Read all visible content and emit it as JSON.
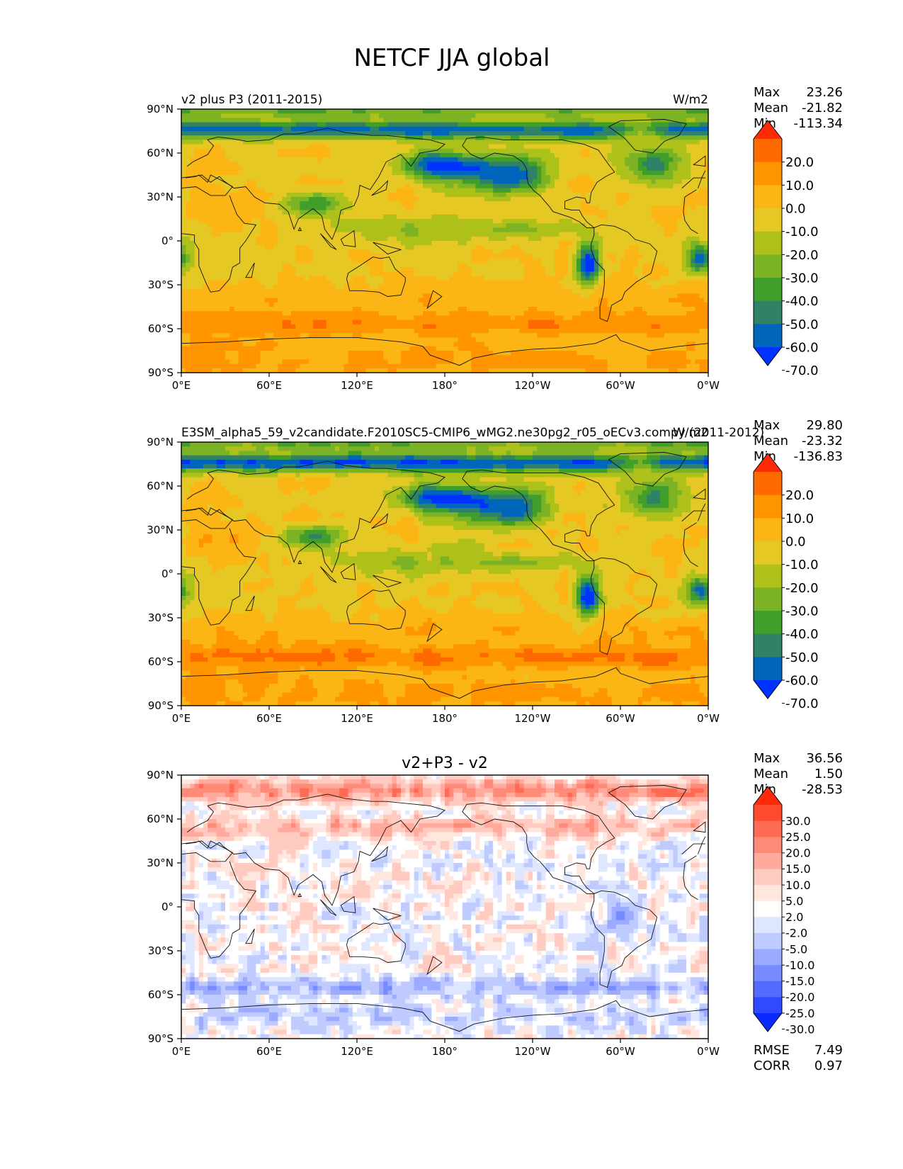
{
  "figure": {
    "title": "NETCF JJA global"
  },
  "chart_data": [
    {
      "type": "heatmap",
      "kind": "map",
      "title": "",
      "left_label": "v2 plus P3 (2011-2015)",
      "units": "W/m2",
      "stats": [
        {
          "label": "Max",
          "value": "23.26"
        },
        {
          "label": "Mean",
          "value": "-21.82"
        },
        {
          "label": "Min",
          "value": "-113.34"
        }
      ],
      "colorbar": {
        "labels": [
          "20.0",
          "10.0",
          "0.0",
          "-10.0",
          "-20.0",
          "-30.0",
          "-40.0",
          "-50.0",
          "-60.0",
          "-70.0"
        ],
        "colors": [
          "#ff2a0a",
          "#ff6a00",
          "#ff9500",
          "#fbb515",
          "#e6c824",
          "#adc11a",
          "#7cb324",
          "#409e2a",
          "#2f8268",
          "#0066bb",
          "#0033ff"
        ],
        "extend": "both"
      },
      "xticks": [
        "0°E",
        "60°E",
        "120°E",
        "180°",
        "120°W",
        "60°W",
        "0°W"
      ],
      "yticks": [
        "90°N",
        "60°N",
        "30°N",
        "0°",
        "30°S",
        "60°S",
        "90°S"
      ],
      "field": "model",
      "xlim": [
        0,
        360
      ],
      "ylim": [
        -90,
        90
      ]
    },
    {
      "type": "heatmap",
      "kind": "map",
      "title": "",
      "left_label": "E3SM_alpha5_59_v2candidate.F2010SC5-CMIP6_wMG2.ne30pg2_r05_oECv3.compy (2011-2012)",
      "units": "W/m2",
      "stats": [
        {
          "label": "Max",
          "value": "29.80"
        },
        {
          "label": "Mean",
          "value": "-23.32"
        },
        {
          "label": "Min",
          "value": "-136.83"
        }
      ],
      "colorbar": {
        "labels": [
          "20.0",
          "10.0",
          "0.0",
          "-10.0",
          "-20.0",
          "-30.0",
          "-40.0",
          "-50.0",
          "-60.0",
          "-70.0"
        ],
        "colors": [
          "#ff2a0a",
          "#ff6a00",
          "#ff9500",
          "#fbb515",
          "#e6c824",
          "#adc11a",
          "#7cb324",
          "#409e2a",
          "#2f8268",
          "#0066bb",
          "#0033ff"
        ],
        "extend": "both"
      },
      "xticks": [
        "0°E",
        "60°E",
        "120°E",
        "180°",
        "120°W",
        "60°W",
        "0°W"
      ],
      "yticks": [
        "90°N",
        "60°N",
        "30°N",
        "0°",
        "30°S",
        "60°S",
        "90°S"
      ],
      "field": "ref",
      "xlim": [
        0,
        360
      ],
      "ylim": [
        -90,
        90
      ]
    },
    {
      "type": "heatmap",
      "kind": "map",
      "title": "v2+P3 - v2",
      "left_label": "",
      "units": "",
      "stats": [
        {
          "label": "Max",
          "value": "36.56"
        },
        {
          "label": "Mean",
          "value": "1.50"
        },
        {
          "label": "Min",
          "value": "-28.53"
        }
      ],
      "colorbar": {
        "labels": [
          "30.0",
          "25.0",
          "20.0",
          "15.0",
          "10.0",
          "5.0",
          "2.0",
          "-2.0",
          "-5.0",
          "-10.0",
          "-15.0",
          "-20.0",
          "-25.0",
          "-30.0"
        ],
        "colors": [
          "#ff2a0a",
          "#ff4a30",
          "#ff6a55",
          "#ff8a78",
          "#ffaa9c",
          "#ffcabf",
          "#ffe6df",
          "#ffffff",
          "#dfe6ff",
          "#bfcaff",
          "#9caaff",
          "#788aff",
          "#556aff",
          "#304aff",
          "#0a2aff"
        ],
        "extend": "both"
      },
      "extra_stats": [
        {
          "label": "RMSE",
          "value": "7.49"
        },
        {
          "label": "CORR",
          "value": "0.97"
        }
      ],
      "xticks": [
        "0°E",
        "60°E",
        "120°E",
        "180°",
        "120°W",
        "60°W",
        "0°W"
      ],
      "yticks": [
        "90°N",
        "60°N",
        "30°N",
        "0°",
        "30°S",
        "60°S",
        "90°S"
      ],
      "field": "diff",
      "xlim": [
        0,
        360
      ],
      "ylim": [
        -90,
        90
      ]
    }
  ]
}
